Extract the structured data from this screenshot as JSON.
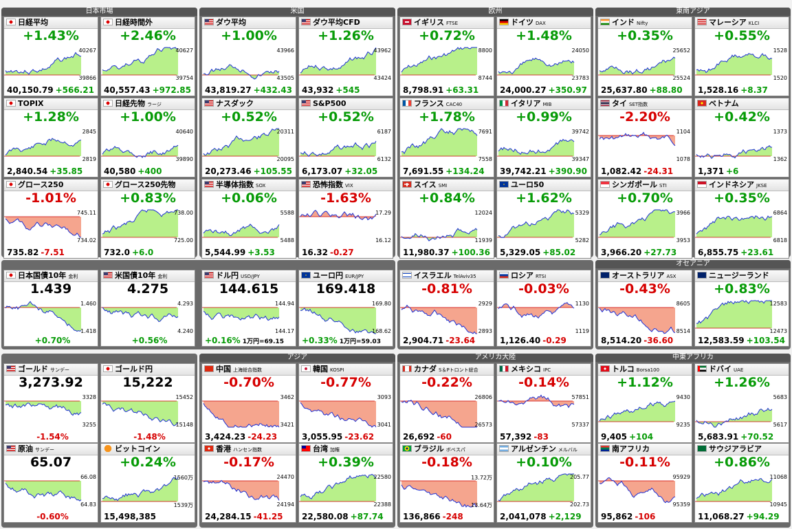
{
  "groups": [
    {
      "title": "日本市場"
    },
    {
      "title": "米国"
    },
    {
      "title": "欧州"
    },
    {
      "title": "東南アジア"
    },
    {
      "title": "オセアニア"
    },
    {
      "title": "アジア"
    },
    {
      "title": "アメリカ大陸"
    },
    {
      "title": "中東アフリカ"
    }
  ],
  "tiles": [
    {
      "name": "日経平均",
      "sub": "",
      "flag": "JP",
      "pct": "+1.43%",
      "dir": "up",
      "price": "40,150.79",
      "change": "+566.21",
      "hi": "40267",
      "lo": "39866"
    },
    {
      "name": "日経時間外",
      "sub": "",
      "flag": "JP",
      "pct": "+2.46%",
      "dir": "up",
      "price": "40,557.43",
      "change": "+972.85",
      "hi": "40627",
      "lo": "39754"
    },
    {
      "name": "ダウ平均",
      "sub": "",
      "flag": "US",
      "pct": "+1.00%",
      "dir": "up",
      "price": "43,819.27",
      "change": "+432.43",
      "hi": "43966",
      "lo": "43505"
    },
    {
      "name": "ダウ平均CFD",
      "sub": "",
      "flag": "US",
      "pct": "+1.26%",
      "dir": "up",
      "price": "43,932",
      "change": "+545",
      "hi": "43962",
      "lo": "43424"
    },
    {
      "name": "イギリス",
      "sub": "FTSE",
      "flag": "GB",
      "pct": "+0.72%",
      "dir": "up",
      "price": "8,798.91",
      "change": "+63.31",
      "hi": "8800",
      "lo": "8744"
    },
    {
      "name": "ドイツ",
      "sub": "DAX",
      "flag": "DE",
      "pct": "+1.48%",
      "dir": "up",
      "price": "24,000.27",
      "change": "+350.97",
      "hi": "24050",
      "lo": "23783"
    },
    {
      "name": "インド",
      "sub": "Nifty",
      "flag": "IN",
      "pct": "+0.35%",
      "dir": "up",
      "price": "25,637.80",
      "change": "+88.80",
      "hi": "25652",
      "lo": "25524"
    },
    {
      "name": "マレーシア",
      "sub": "KLCI",
      "flag": "MY",
      "pct": "+0.55%",
      "dir": "up",
      "price": "1,528.16",
      "change": "+8.37",
      "hi": "1528",
      "lo": "1520"
    },
    {
      "name": "TOPIX",
      "sub": "",
      "flag": "JP",
      "pct": "+1.28%",
      "dir": "up",
      "price": "2,840.54",
      "change": "+35.85",
      "hi": "2845",
      "lo": "2819"
    },
    {
      "name": "日経先物",
      "sub": "ラージ",
      "flag": "JP",
      "pct": "+1.00%",
      "dir": "up",
      "price": "40,580",
      "change": "+400",
      "hi": "40640",
      "lo": "39890"
    },
    {
      "name": "ナスダック",
      "sub": "",
      "flag": "US",
      "pct": "+0.52%",
      "dir": "up",
      "price": "20,273.46",
      "change": "+105.55",
      "hi": "20311",
      "lo": "20095"
    },
    {
      "name": "S&P500",
      "sub": "",
      "flag": "US",
      "pct": "+0.52%",
      "dir": "up",
      "price": "6,173.07",
      "change": "+32.05",
      "hi": "6187",
      "lo": "6132"
    },
    {
      "name": "フランス",
      "sub": "CAC40",
      "flag": "FR",
      "pct": "+1.78%",
      "dir": "up",
      "price": "7,691.55",
      "change": "+134.24",
      "hi": "7691",
      "lo": "7558"
    },
    {
      "name": "イタリア",
      "sub": "MIB",
      "flag": "IT",
      "pct": "+0.99%",
      "dir": "up",
      "price": "39,742.21",
      "change": "+390.90",
      "hi": "39742",
      "lo": "39347"
    },
    {
      "name": "タイ",
      "sub": "SET指数",
      "flag": "TH",
      "pct": "-2.20%",
      "dir": "down",
      "price": "1,082.42",
      "change": "-24.31",
      "hi": "1104",
      "lo": "1078"
    },
    {
      "name": "ベトナム",
      "sub": "",
      "flag": "VN",
      "pct": "+0.42%",
      "dir": "up",
      "price": "1,371",
      "change": "+6",
      "hi": "1373",
      "lo": "1362"
    },
    {
      "name": "グロース250",
      "sub": "",
      "flag": "JP",
      "pct": "-1.01%",
      "dir": "down",
      "price": "735.82",
      "change": "-7.51",
      "hi": "745.11",
      "lo": "734.02"
    },
    {
      "name": "グロース250先物",
      "sub": "",
      "flag": "JP",
      "pct": "+0.83%",
      "dir": "up",
      "price": "732.0",
      "change": "+6.0",
      "hi": "738.00",
      "lo": "725.00"
    },
    {
      "name": "半導体指数",
      "sub": "SOX",
      "flag": "US",
      "pct": "+0.06%",
      "dir": "up",
      "price": "5,544.99",
      "change": "+3.53",
      "hi": "5588",
      "lo": "5488"
    },
    {
      "name": "恐怖指数",
      "sub": "VIX",
      "flag": "US",
      "pct": "-1.63%",
      "dir": "down",
      "price": "16.32",
      "change": "-0.27",
      "hi": "17.29",
      "lo": "16.12"
    },
    {
      "name": "スイス",
      "sub": "SMI",
      "flag": "CH",
      "pct": "+0.84%",
      "dir": "up",
      "price": "11,980.37",
      "change": "+100.36",
      "hi": "12024",
      "lo": "11939"
    },
    {
      "name": "ユーロ50",
      "sub": "",
      "flag": "EU",
      "pct": "+1.62%",
      "dir": "up",
      "price": "5,329.05",
      "change": "+85.02",
      "hi": "5329",
      "lo": "5282"
    },
    {
      "name": "シンガポール",
      "sub": "STI",
      "flag": "SG",
      "pct": "+0.70%",
      "dir": "up",
      "price": "3,966.20",
      "change": "+27.73",
      "hi": "3966",
      "lo": "3953"
    },
    {
      "name": "インドネシア",
      "sub": "JKSE",
      "flag": "ID",
      "pct": "+0.35%",
      "dir": "up",
      "price": "6,855.75",
      "change": "+23.61",
      "hi": "6864",
      "lo": "6818"
    },
    {
      "name": "日本国債10年",
      "sub": "金利",
      "flag": "JP",
      "pct": "1.439",
      "dir": "black",
      "price": "",
      "change": "+0.70%",
      "hi": "1.460",
      "lo": "1.418"
    },
    {
      "name": "米国債10年",
      "sub": "金利",
      "flag": "US",
      "pct": "4.275",
      "dir": "black",
      "price": "",
      "change": "+0.56%",
      "hi": "4.293",
      "lo": "4.240"
    },
    {
      "name": "ドル円",
      "sub": "USD/JPY",
      "flag": "US",
      "pct": "144.615",
      "dir": "black",
      "price": "+0.16%",
      "change": "1万円=69.15",
      "hi": "144.94",
      "lo": "144.17"
    },
    {
      "name": "ユーロ円",
      "sub": "EUR/JPY",
      "flag": "EU",
      "pct": "169.418",
      "dir": "black",
      "price": "+0.33%",
      "change": "1万円=59.03",
      "hi": "169.80",
      "lo": "168.62"
    },
    {
      "name": "イスラエル",
      "sub": "TelAviv35",
      "flag": "IL",
      "pct": "-0.81%",
      "dir": "down",
      "price": "2,904.71",
      "change": "-23.64",
      "hi": "2929",
      "lo": "2893"
    },
    {
      "name": "ロシア",
      "sub": "RTSI",
      "flag": "RU",
      "pct": "-0.03%",
      "dir": "down",
      "price": "1,126.40",
      "change": "-0.29",
      "hi": "1130",
      "lo": "1119"
    },
    {
      "name": "オーストラリア",
      "sub": "ASX",
      "flag": "AU",
      "pct": "-0.43%",
      "dir": "down",
      "price": "8,514.20",
      "change": "-36.60",
      "hi": "8605",
      "lo": "8514"
    },
    {
      "name": "ニュージーランド",
      "sub": "",
      "flag": "NZ",
      "pct": "+0.83%",
      "dir": "up",
      "price": "12,583.59",
      "change": "+103.54",
      "hi": "12583",
      "lo": "12473"
    },
    {
      "name": "ゴールド",
      "sub": "サンデー",
      "flag": "US",
      "pct": "3,273.92",
      "dir": "black",
      "price": "",
      "change": "-1.54%",
      "hi": "3328",
      "lo": "3255"
    },
    {
      "name": "ゴールド円",
      "sub": "",
      "flag": "JP",
      "pct": "15,222",
      "dir": "black",
      "price": "",
      "change": "-1.48%",
      "hi": "15452",
      "lo": "15148"
    },
    {
      "name": "中国",
      "sub": "上海総合指数",
      "flag": "CN",
      "pct": "-0.70%",
      "dir": "down",
      "price": "3,424.23",
      "change": "-24.23",
      "hi": "3462",
      "lo": "3421"
    },
    {
      "name": "韓国",
      "sub": "KOSPI",
      "flag": "KR",
      "pct": "-0.77%",
      "dir": "down",
      "price": "3,055.95",
      "change": "-23.62",
      "hi": "3093",
      "lo": "3041"
    },
    {
      "name": "カナダ",
      "sub": "S＆Pトロント総合",
      "flag": "CA",
      "pct": "-0.22%",
      "dir": "down",
      "price": "26,692",
      "change": "-60",
      "hi": "26806",
      "lo": "26573"
    },
    {
      "name": "メキシコ",
      "sub": "IPC",
      "flag": "MX",
      "pct": "-0.14%",
      "dir": "down",
      "price": "57,392",
      "change": "-83",
      "hi": "57851",
      "lo": "57337"
    },
    {
      "name": "トルコ",
      "sub": "Borsa100",
      "flag": "TR",
      "pct": "+1.12%",
      "dir": "up",
      "price": "9,405",
      "change": "+104",
      "hi": "9430",
      "lo": "9235"
    },
    {
      "name": "ドバイ",
      "sub": "UAE",
      "flag": "AE",
      "pct": "+1.26%",
      "dir": "up",
      "price": "5,683.91",
      "change": "+70.52",
      "hi": "5683",
      "lo": "5617"
    },
    {
      "name": "原油",
      "sub": "サンデー",
      "flag": "US",
      "pct": "65.07",
      "dir": "black",
      "price": "",
      "change": "-0.60%",
      "hi": "66.08",
      "lo": "64.83"
    },
    {
      "name": "ビットコイン",
      "sub": "",
      "flag": "BTC",
      "pct": "+0.24%",
      "dir": "up",
      "price": "15,498,385",
      "change": "",
      "hi": "1560万",
      "lo": "1539万"
    },
    {
      "name": "香港",
      "sub": "ハンセン指数",
      "flag": "HK",
      "pct": "-0.17%",
      "dir": "down",
      "price": "24,284.15",
      "change": "-41.25",
      "hi": "24470",
      "lo": "24194"
    },
    {
      "name": "台湾",
      "sub": "加権",
      "flag": "TW",
      "pct": "+0.39%",
      "dir": "up",
      "price": "22,580.08",
      "change": "+87.74",
      "hi": "22580",
      "lo": "22388"
    },
    {
      "name": "ブラジル",
      "sub": "ボベスパ",
      "flag": "BR",
      "pct": "-0.18%",
      "dir": "down",
      "price": "136,866",
      "change": "-248",
      "hi": "13.72万",
      "lo": "13.64万"
    },
    {
      "name": "アルゼンチン",
      "sub": "メルバル",
      "flag": "AR",
      "pct": "+0.10%",
      "dir": "up",
      "price": "2,041,078",
      "change": "+2,129",
      "hi": "205.77",
      "lo": "202.73"
    },
    {
      "name": "南アフリカ",
      "sub": "",
      "flag": "ZA",
      "pct": "-0.11%",
      "dir": "down",
      "price": "95,862",
      "change": "-106",
      "hi": "95929",
      "lo": "95359"
    },
    {
      "name": "サウジアラビア",
      "sub": "",
      "flag": "SA",
      "pct": "+0.86%",
      "dir": "up",
      "price": "11,068.27",
      "change": "+94.29",
      "hi": "11068",
      "lo": "10945"
    }
  ],
  "colors": {
    "up": "#079b07",
    "down": "#d60000",
    "fill_up": "#b8f08a",
    "fill_down": "#f5a58e",
    "line": "#1b2fd6"
  }
}
